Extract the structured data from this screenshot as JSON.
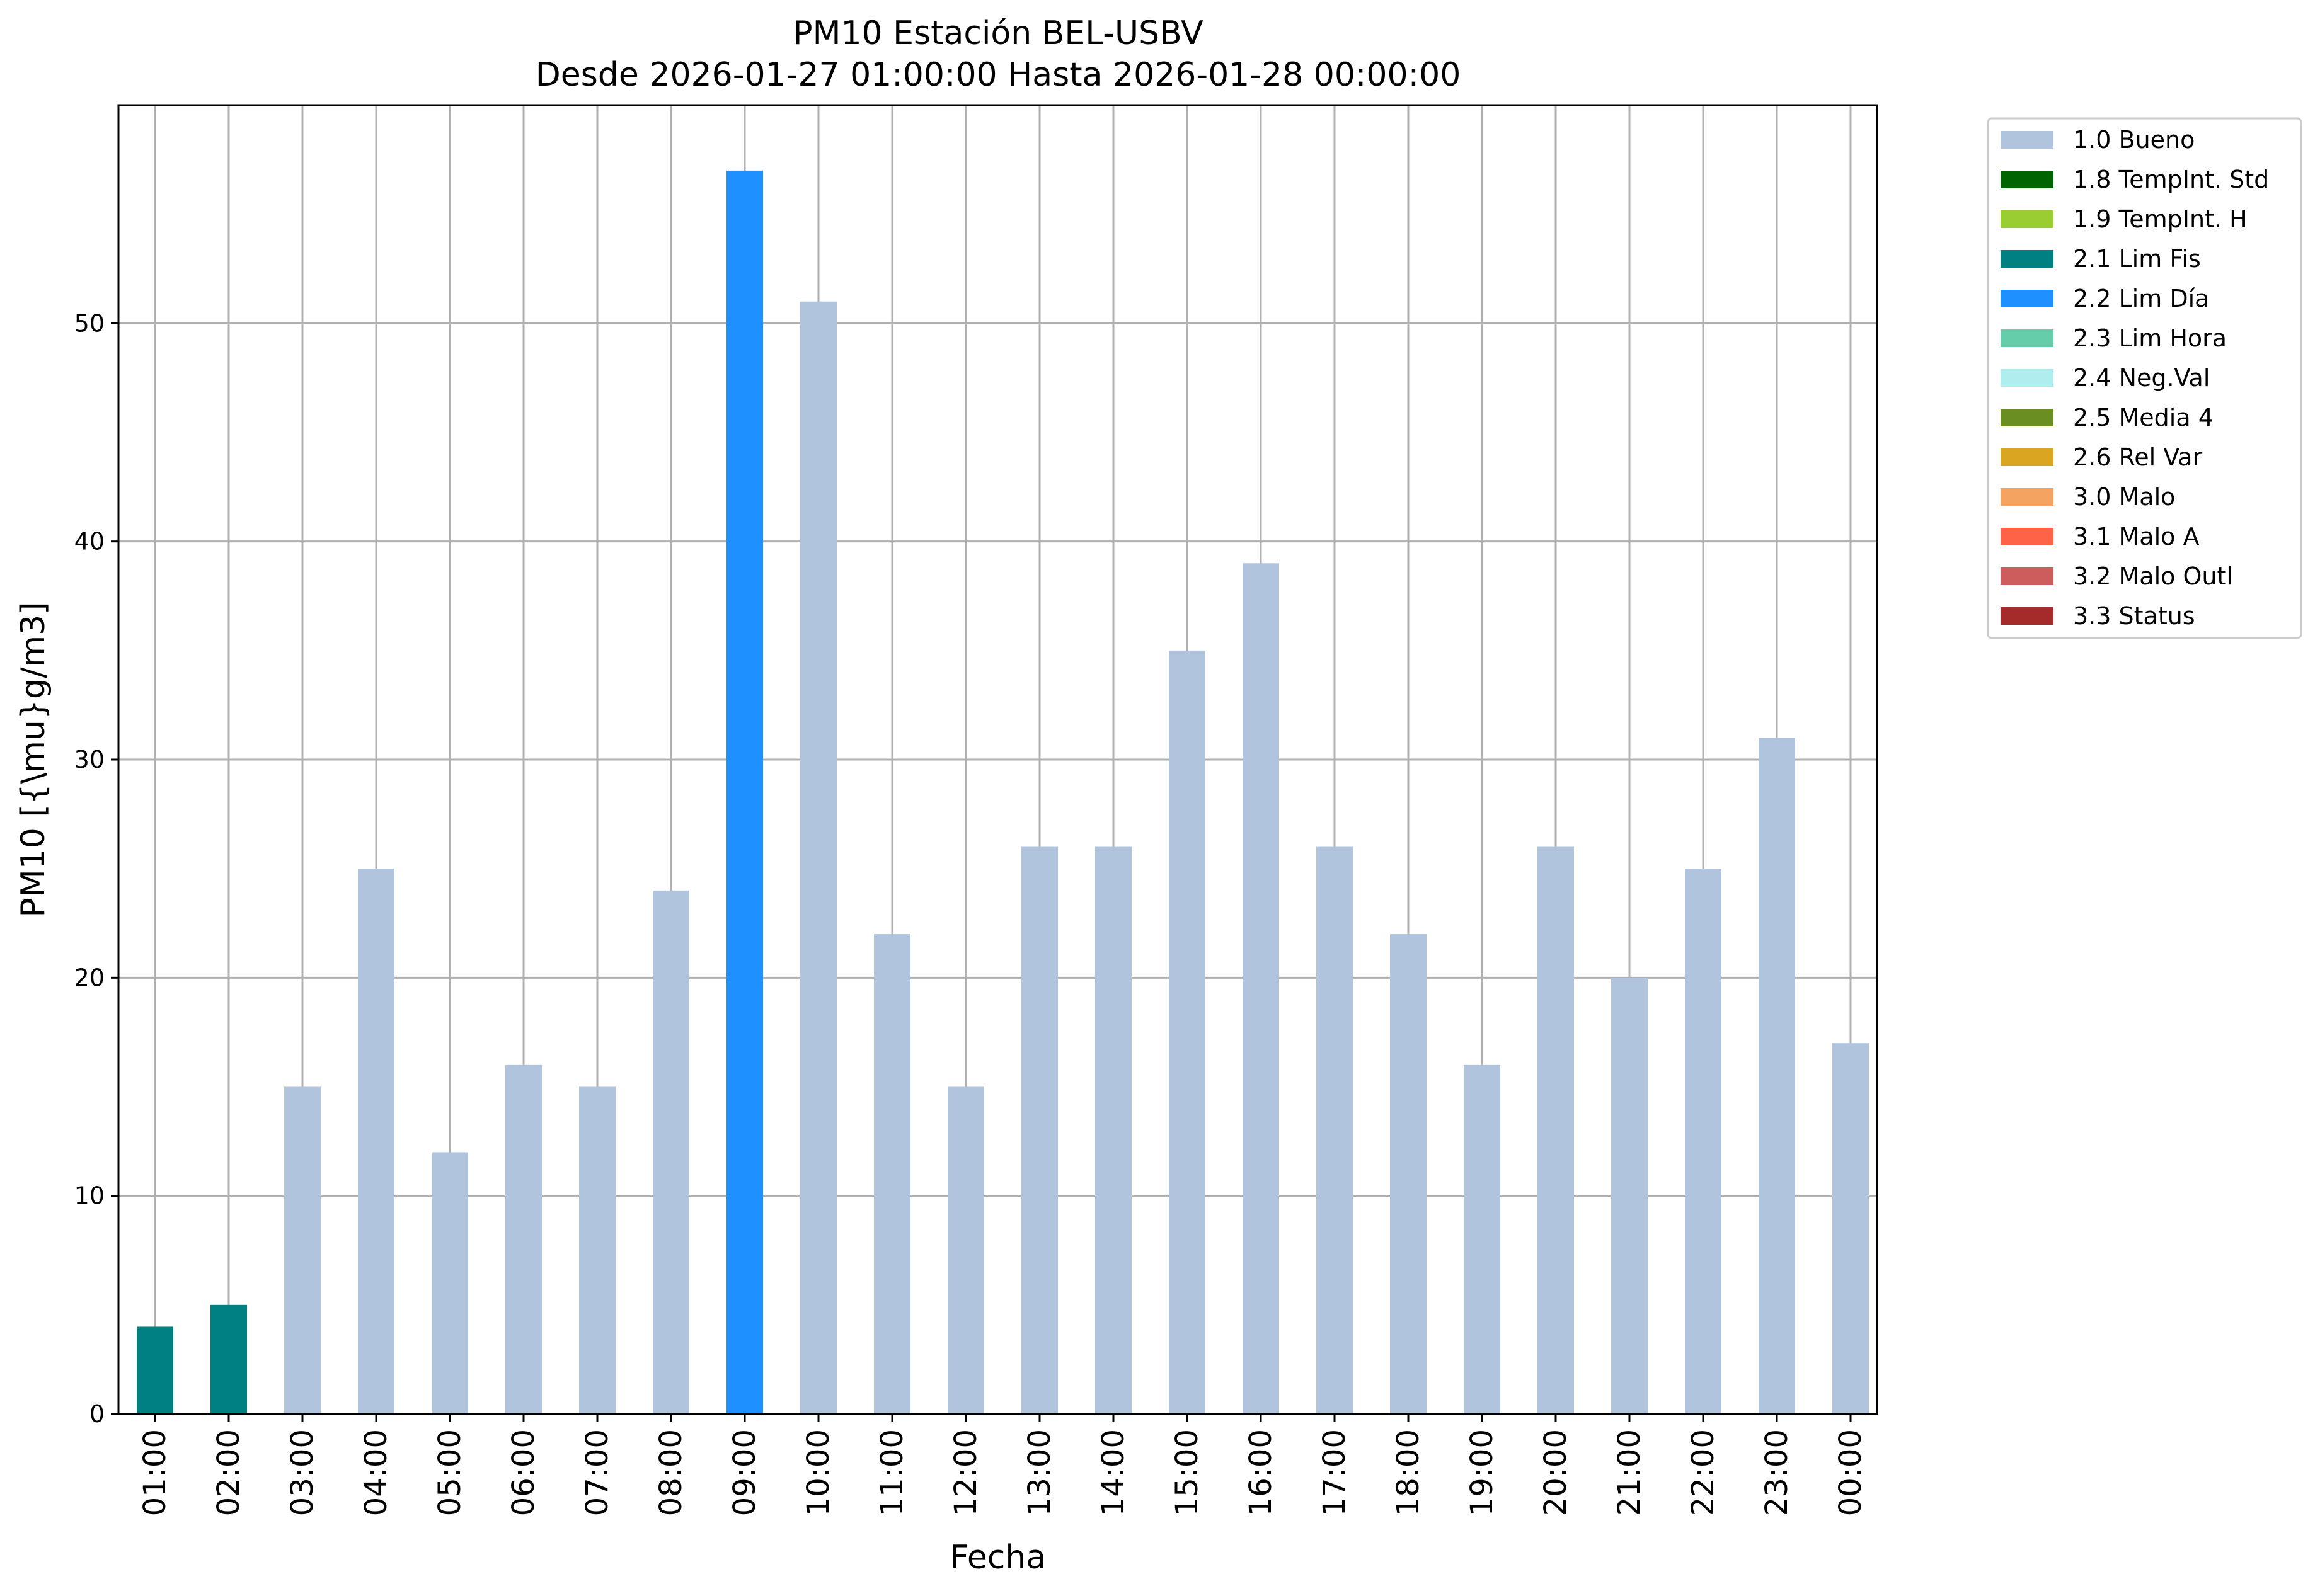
{
  "chart_data": {
    "type": "bar",
    "title": "PM10 Estación BEL-USBV",
    "subtitle": "Desde 2026-01-27 01:00:00 Hasta 2026-01-28 00:00:00",
    "xlabel": "Fecha",
    "ylabel": "PM10 [{\\mu}g/m3]",
    "ylim": [
      0,
      60
    ],
    "yticks": [
      0,
      10,
      20,
      30,
      40,
      50
    ],
    "grid": true,
    "legend_position": "outside-right-top",
    "categories": [
      "01:00",
      "02:00",
      "03:00",
      "04:00",
      "05:00",
      "06:00",
      "07:00",
      "08:00",
      "09:00",
      "10:00",
      "11:00",
      "12:00",
      "13:00",
      "14:00",
      "15:00",
      "16:00",
      "17:00",
      "18:00",
      "19:00",
      "20:00",
      "21:00",
      "22:00",
      "23:00",
      "00:00"
    ],
    "values": [
      4,
      5,
      15,
      25,
      12,
      16,
      15,
      24,
      57,
      51,
      22,
      15,
      26,
      26,
      35,
      39,
      26,
      22,
      16,
      26,
      20,
      25,
      31,
      17
    ],
    "flags": [
      "2.1 Lim Fis",
      "2.1 Lim Fis",
      "1.0 Bueno",
      "1.0 Bueno",
      "1.0 Bueno",
      "1.0 Bueno",
      "1.0 Bueno",
      "1.0 Bueno",
      "2.2 Lim Día",
      "1.0 Bueno",
      "1.0 Bueno",
      "1.0 Bueno",
      "1.0 Bueno",
      "1.0 Bueno",
      "1.0 Bueno",
      "1.0 Bueno",
      "1.0 Bueno",
      "1.0 Bueno",
      "1.0 Bueno",
      "1.0 Bueno",
      "1.0 Bueno",
      "1.0 Bueno",
      "1.0 Bueno",
      "1.0 Bueno"
    ],
    "legend": [
      {
        "label": "1.0 Bueno",
        "color": "#b0c4de"
      },
      {
        "label": "1.8 TempInt. Std",
        "color": "#006400"
      },
      {
        "label": "1.9 TempInt. H",
        "color": "#9acd32"
      },
      {
        "label": "2.1 Lim Fis",
        "color": "#008080"
      },
      {
        "label": "2.2 Lim Día",
        "color": "#1e90ff"
      },
      {
        "label": "2.3 Lim Hora",
        "color": "#66cdaa"
      },
      {
        "label": "2.4 Neg.Val",
        "color": "#afeeee"
      },
      {
        "label": "2.5 Media 4",
        "color": "#6b8e23"
      },
      {
        "label": "2.6 Rel Var",
        "color": "#daa520"
      },
      {
        "label": "3.0 Malo",
        "color": "#f4a460"
      },
      {
        "label": "3.1 Malo A",
        "color": "#ff6347"
      },
      {
        "label": "3.2 Malo Outl",
        "color": "#cd5c5c"
      },
      {
        "label": "3.3 Status",
        "color": "#a52a2a"
      }
    ]
  }
}
